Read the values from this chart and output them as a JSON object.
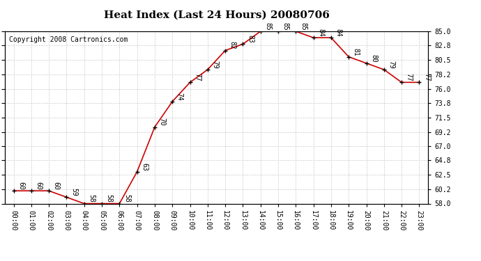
{
  "title": "Heat Index (Last 24 Hours) 20080706",
  "copyright": "Copyright 2008 Cartronics.com",
  "hours": [
    0,
    1,
    2,
    3,
    4,
    5,
    6,
    7,
    8,
    9,
    10,
    11,
    12,
    13,
    14,
    15,
    16,
    17,
    18,
    19,
    20,
    21,
    22,
    23
  ],
  "hour_labels": [
    "00:00",
    "01:00",
    "02:00",
    "03:00",
    "04:00",
    "05:00",
    "06:00",
    "07:00",
    "08:00",
    "09:00",
    "10:00",
    "11:00",
    "12:00",
    "13:00",
    "14:00",
    "15:00",
    "16:00",
    "17:00",
    "18:00",
    "19:00",
    "20:00",
    "21:00",
    "22:00",
    "23:00"
  ],
  "values": [
    60,
    60,
    60,
    59,
    58,
    58,
    58,
    63,
    70,
    74,
    77,
    79,
    82,
    83,
    85,
    85,
    85,
    84,
    84,
    81,
    80,
    79,
    77,
    77
  ],
  "ylim": [
    58.0,
    85.0
  ],
  "yticks": [
    58.0,
    60.2,
    62.5,
    64.8,
    67.0,
    69.2,
    71.5,
    73.8,
    76.0,
    78.2,
    80.5,
    82.8,
    85.0
  ],
  "line_color": "#cc0000",
  "marker_color": "#000000",
  "grid_color": "#cccccc",
  "background_color": "#ffffff",
  "text_color": "#000000",
  "title_fontsize": 11,
  "label_fontsize": 7,
  "annotation_fontsize": 7,
  "copyright_fontsize": 7
}
